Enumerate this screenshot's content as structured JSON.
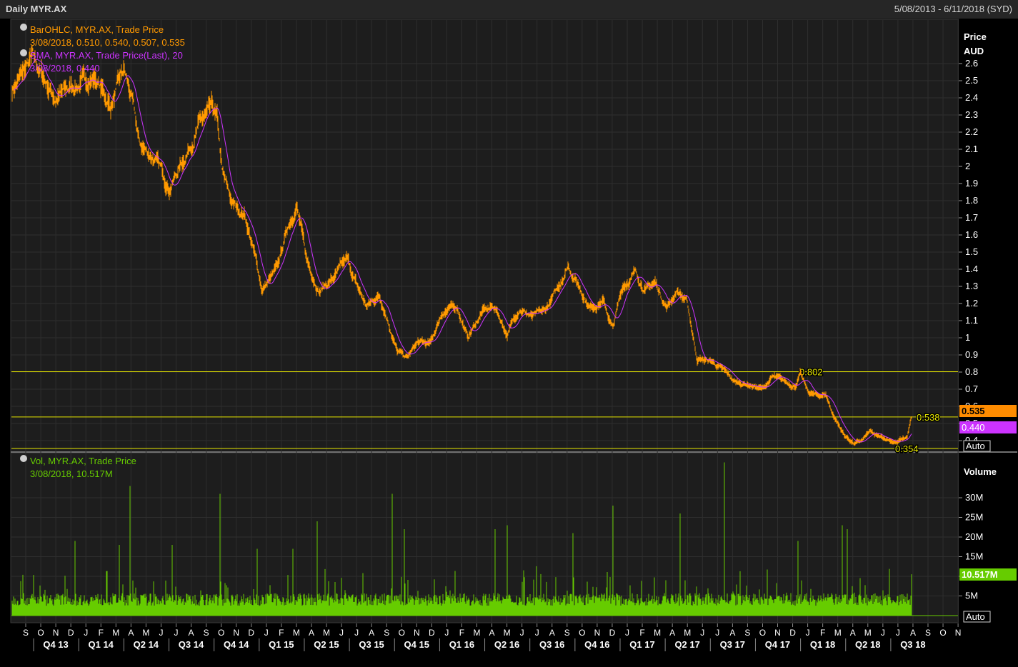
{
  "window": {
    "title": "Daily MYR.AX",
    "range": "5/08/2013 - 6/11/2018 (SYD)"
  },
  "price_panel": {
    "legend": [
      {
        "name": "BarOHLC, MYR.AX, Trade Price",
        "value": "3/08/2018, 0.510, 0.540, 0.507, 0.535",
        "color": "#ff9900"
      },
      {
        "name": "SMA, MYR.AX, Trade Price(Last),  20",
        "value": "3/08/2018, 0.440",
        "color": "#cc33ff"
      }
    ],
    "axis_title": "Price",
    "axis_unit": "AUD",
    "ticks": [
      "0.4",
      "0.5",
      "0.6",
      "0.7",
      "0.8",
      "0.9",
      "1",
      "1.1",
      "1.2",
      "1.3",
      "1.4",
      "1.5",
      "1.6",
      "1.7",
      "1.8",
      "1.9",
      "2",
      "2.1",
      "2.2",
      "2.3",
      "2.4",
      "2.5",
      "2.6"
    ],
    "hlines": [
      {
        "label": "0.802",
        "value": 0.802
      },
      {
        "label": "0.538",
        "value": 0.538
      },
      {
        "label": "0.354",
        "value": 0.354
      }
    ],
    "last_price": "0.535",
    "last_sma": "0.440",
    "auto_label": "Auto"
  },
  "volume_panel": {
    "legend_name": "Vol, MYR.AX, Trade Price",
    "legend_value": "3/08/2018, 10.517M",
    "axis_title": "Volume",
    "ticks": [
      "5M",
      "10M",
      "15M",
      "20M",
      "25M",
      "30M"
    ],
    "last_volume": "10.517M",
    "auto_label": "Auto"
  },
  "x_axis": {
    "months": [
      "S",
      "O",
      "N",
      "D",
      "J",
      "F",
      "M",
      "A",
      "M",
      "J",
      "J",
      "A",
      "S",
      "O",
      "N",
      "D",
      "J",
      "F",
      "M",
      "A",
      "M",
      "J",
      "J",
      "A",
      "S",
      "O",
      "N",
      "D",
      "J",
      "F",
      "M",
      "A",
      "M",
      "J",
      "J",
      "A",
      "S",
      "O",
      "N",
      "D",
      "J",
      "F",
      "M",
      "A",
      "M",
      "J",
      "J",
      "A",
      "S",
      "O",
      "N",
      "D",
      "J",
      "F",
      "M",
      "A",
      "M",
      "J",
      "J",
      "A",
      "S",
      "O",
      "N"
    ],
    "quarters": [
      "Q4 13",
      "Q1 14",
      "Q2 14",
      "Q3 14",
      "Q4 14",
      "Q1 15",
      "Q2 15",
      "Q3 15",
      "Q4 15",
      "Q1 16",
      "Q2 16",
      "Q3 16",
      "Q4 16",
      "Q1 17",
      "Q2 17",
      "Q3 17",
      "Q4 17",
      "Q1 18",
      "Q2 18",
      "Q3 18"
    ]
  },
  "chart_data": {
    "type": "line",
    "price": {
      "x_range": [
        "2013-08-05",
        "2018-08-03"
      ],
      "ylim": [
        0.35,
        2.65
      ],
      "keypoints": [
        [
          "2013-08-05",
          2.45
        ],
        [
          "2013-09-15",
          2.62
        ],
        [
          "2013-11-01",
          2.4
        ],
        [
          "2013-12-15",
          2.48
        ],
        [
          "2014-01-20",
          2.52
        ],
        [
          "2014-02-20",
          2.35
        ],
        [
          "2014-03-20",
          2.55
        ],
        [
          "2014-04-05",
          2.38
        ],
        [
          "2014-04-20",
          2.12
        ],
        [
          "2014-05-20",
          2.05
        ],
        [
          "2014-06-20",
          1.88
        ],
        [
          "2014-07-20",
          2.05
        ],
        [
          "2014-08-20",
          2.25
        ],
        [
          "2014-09-15",
          2.32
        ],
        [
          "2014-09-25",
          2.25
        ],
        [
          "2014-10-05",
          1.95
        ],
        [
          "2014-10-25",
          1.78
        ],
        [
          "2014-11-20",
          1.72
        ],
        [
          "2014-12-10",
          1.48
        ],
        [
          "2014-12-25",
          1.28
        ],
        [
          "2015-01-25",
          1.4
        ],
        [
          "2015-02-15",
          1.65
        ],
        [
          "2015-03-05",
          1.78
        ],
        [
          "2015-03-25",
          1.45
        ],
        [
          "2015-04-20",
          1.28
        ],
        [
          "2015-05-20",
          1.35
        ],
        [
          "2015-06-15",
          1.45
        ],
        [
          "2015-07-05",
          1.3
        ],
        [
          "2015-07-25",
          1.18
        ],
        [
          "2015-08-20",
          1.25
        ],
        [
          "2015-09-05",
          1.12
        ],
        [
          "2015-09-25",
          0.92
        ],
        [
          "2015-10-15",
          0.88
        ],
        [
          "2015-11-05",
          0.97
        ],
        [
          "2015-12-01",
          0.96
        ],
        [
          "2015-12-25",
          1.15
        ],
        [
          "2016-01-25",
          1.18
        ],
        [
          "2016-02-15",
          1.0
        ],
        [
          "2016-03-15",
          1.15
        ],
        [
          "2016-04-10",
          1.18
        ],
        [
          "2016-05-05",
          1.02
        ],
        [
          "2016-05-30",
          1.18
        ],
        [
          "2016-06-25",
          1.12
        ],
        [
          "2016-07-20",
          1.15
        ],
        [
          "2016-08-15",
          1.28
        ],
        [
          "2016-09-05",
          1.43
        ],
        [
          "2016-09-25",
          1.32
        ],
        [
          "2016-10-20",
          1.18
        ],
        [
          "2016-11-15",
          1.22
        ],
        [
          "2016-12-05",
          1.05
        ],
        [
          "2016-12-25",
          1.3
        ],
        [
          "2017-01-20",
          1.38
        ],
        [
          "2017-02-10",
          1.28
        ],
        [
          "2017-03-01",
          1.32
        ],
        [
          "2017-03-25",
          1.18
        ],
        [
          "2017-04-15",
          1.28
        ],
        [
          "2017-05-05",
          1.2
        ],
        [
          "2017-05-25",
          0.88
        ],
        [
          "2017-06-25",
          0.86
        ],
        [
          "2017-07-20",
          0.8
        ],
        [
          "2017-08-10",
          0.74
        ],
        [
          "2017-09-05",
          0.73
        ],
        [
          "2017-10-05",
          0.7
        ],
        [
          "2017-10-25",
          0.77
        ],
        [
          "2017-11-20",
          0.74
        ],
        [
          "2017-12-10",
          0.72
        ],
        [
          "2017-12-20",
          0.79
        ],
        [
          "2018-01-05",
          0.68
        ],
        [
          "2018-01-25",
          0.66
        ],
        [
          "2018-02-10",
          0.67
        ],
        [
          "2018-02-25",
          0.55
        ],
        [
          "2018-03-20",
          0.43
        ],
        [
          "2018-04-10",
          0.38
        ],
        [
          "2018-04-25",
          0.4
        ],
        [
          "2018-05-10",
          0.45
        ],
        [
          "2018-05-25",
          0.42
        ],
        [
          "2018-06-15",
          0.41
        ],
        [
          "2018-07-05",
          0.39
        ],
        [
          "2018-07-25",
          0.42
        ],
        [
          "2018-08-03",
          0.535
        ]
      ]
    },
    "sma_20": {
      "last": 0.44
    },
    "volume": {
      "unit": "M",
      "ylim": [
        0,
        36
      ],
      "baseline_typical": [
        3,
        7
      ],
      "spikes": [
        [
          "2014-04-01",
          33
        ],
        [
          "2014-10-01",
          31
        ],
        [
          "2015-09-15",
          31
        ],
        [
          "2017-07-20",
          39
        ],
        [
          "2016-12-05",
          28
        ],
        [
          "2017-04-20",
          26
        ],
        [
          "2015-04-15",
          24
        ],
        [
          "2014-03-10",
          18
        ],
        [
          "2014-06-25",
          18
        ],
        [
          "2015-02-25",
          17
        ],
        [
          "2016-04-10",
          22
        ],
        [
          "2016-05-05",
          23
        ],
        [
          "2018-03-15",
          23
        ],
        [
          "2018-03-25",
          22
        ],
        [
          "2017-12-15",
          19
        ],
        [
          "2016-09-15",
          21
        ],
        [
          "2014-12-15",
          17
        ],
        [
          "2013-12-10",
          19
        ],
        [
          "2015-10-10",
          22
        ],
        [
          "2018-08-03",
          10.517
        ]
      ],
      "last": 10.517
    }
  }
}
